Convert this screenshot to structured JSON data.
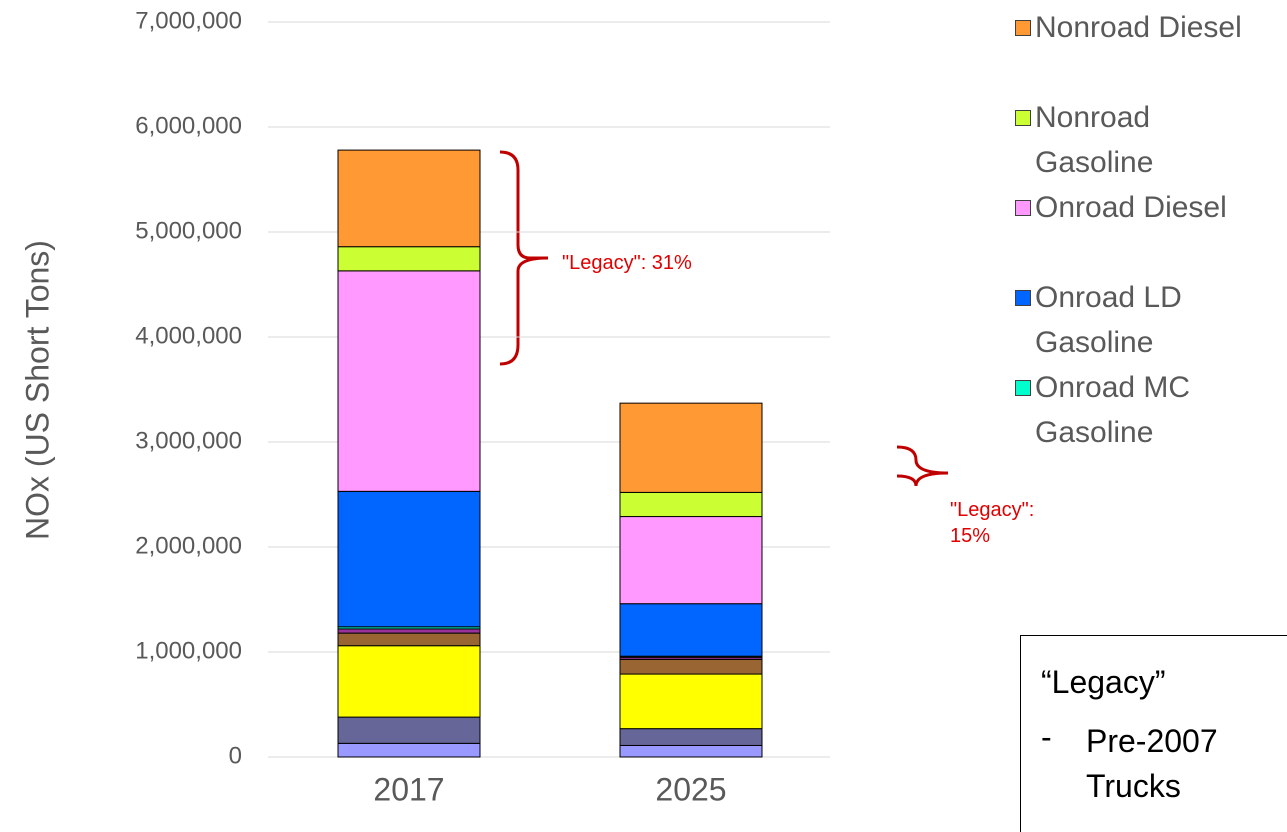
{
  "chart_data": {
    "type": "bar",
    "stacked": true,
    "y_label": "NOx (US Short Tons)",
    "categories": [
      "2017",
      "2025"
    ],
    "ylim": [
      0,
      7000000
    ],
    "yticks": [
      0,
      {
        "value": 1000000,
        "label": "1,000,000"
      },
      {
        "value": 2000000,
        "label": "2,000,000"
      },
      {
        "value": 3000000,
        "label": "3,000,000"
      },
      {
        "value": 4000000,
        "label": "4,000,000"
      },
      {
        "value": 5000000,
        "label": "5,000,000"
      },
      {
        "value": 6000000,
        "label": "6,000,000"
      },
      {
        "value": 7000000,
        "label": "7,000,000"
      }
    ],
    "grid": true,
    "series": [
      {
        "color": "#9999ff",
        "values": [
          130000,
          110000
        ]
      },
      {
        "color": "#666699",
        "values": [
          250000,
          160000
        ]
      },
      {
        "color": "#ffff00",
        "values": [
          680000,
          520000
        ]
      },
      {
        "color": "#996633",
        "values": [
          120000,
          140000
        ]
      },
      {
        "color": "#993399",
        "values": [
          40000,
          20000
        ]
      },
      {
        "name": "Onroad MC Gasoline",
        "color": "#00ffcc",
        "values": [
          20000,
          10000
        ]
      },
      {
        "name": "Onroad LD Gasoline",
        "color": "#0066ff",
        "values": [
          1290000,
          500000
        ]
      },
      {
        "name": "Onroad Diesel",
        "color": "#ff99ff",
        "values": [
          2100000,
          830000
        ]
      },
      {
        "name": "Nonroad Gasoline",
        "color": "#ccff33",
        "values": [
          230000,
          230000
        ]
      },
      {
        "name": "Nonroad Diesel",
        "color": "#ff9933",
        "values": [
          920000,
          850000
        ]
      }
    ],
    "annotations": [
      "\"Legacy\": 31%",
      "\"Legacy\": 15%"
    ],
    "note_box": [
      "“Legacy”",
      "Pre-2007 Trucks"
    ]
  }
}
